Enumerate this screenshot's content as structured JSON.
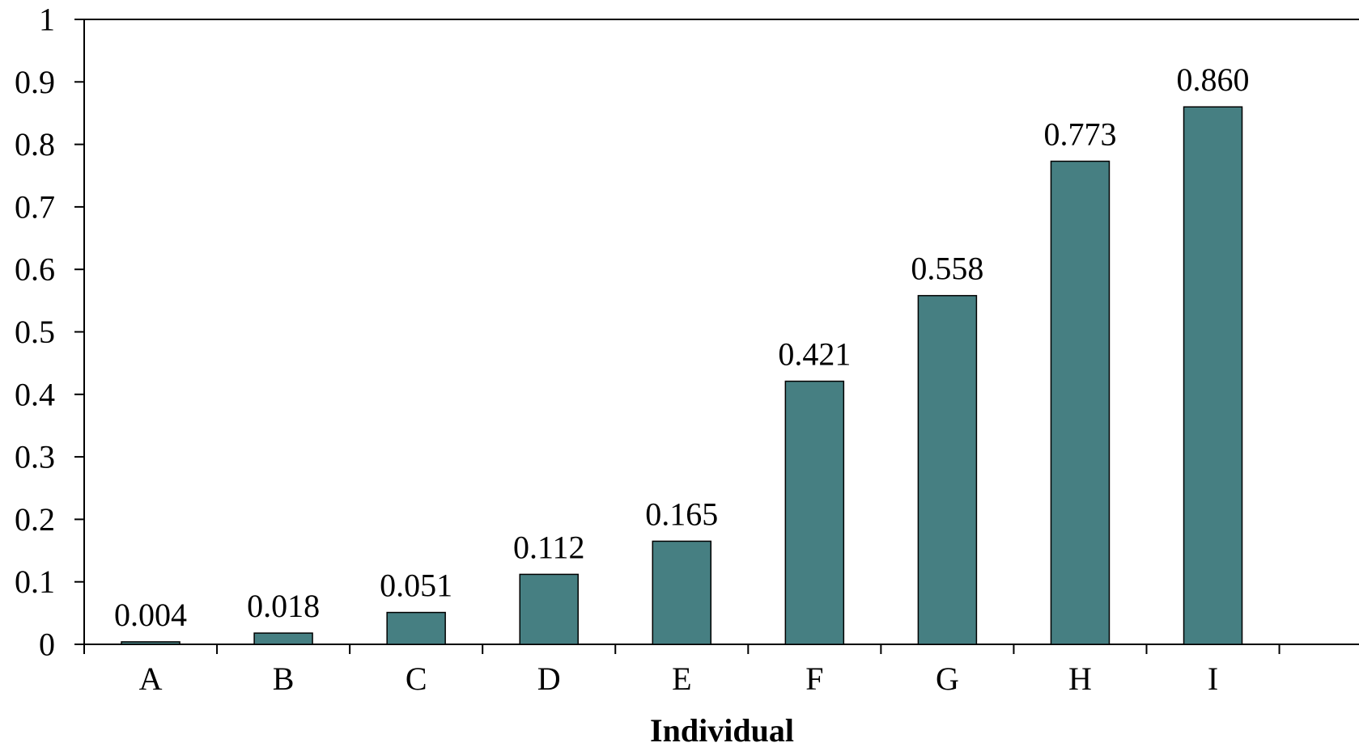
{
  "chart_data": {
    "type": "bar",
    "title": "",
    "xlabel": "Individual",
    "ylabel": "",
    "categories": [
      "A",
      "B",
      "C",
      "D",
      "E",
      "F",
      "G",
      "H",
      "I"
    ],
    "values": [
      0.004,
      0.018,
      0.051,
      0.112,
      0.165,
      0.421,
      0.558,
      0.773,
      0.86
    ],
    "value_labels": [
      "0.004",
      "0.018",
      "0.051",
      "0.112",
      "0.165",
      "0.421",
      "0.558",
      "0.773",
      "0.860"
    ],
    "ylim": [
      0,
      1
    ],
    "yticks": [
      0,
      0.1,
      0.2,
      0.3,
      0.4,
      0.5,
      0.6,
      0.7,
      0.8,
      0.9,
      1
    ],
    "ytick_labels": [
      "0",
      "0.1",
      "0.2",
      "0.3",
      "0.4",
      "0.5",
      "0.6",
      "0.7",
      "0.8",
      "0.9",
      "1"
    ],
    "grid": false,
    "legend": "none",
    "colors": {
      "bar_fill": "#467F82",
      "bar_stroke": "#000000",
      "axis": "#000000"
    }
  }
}
